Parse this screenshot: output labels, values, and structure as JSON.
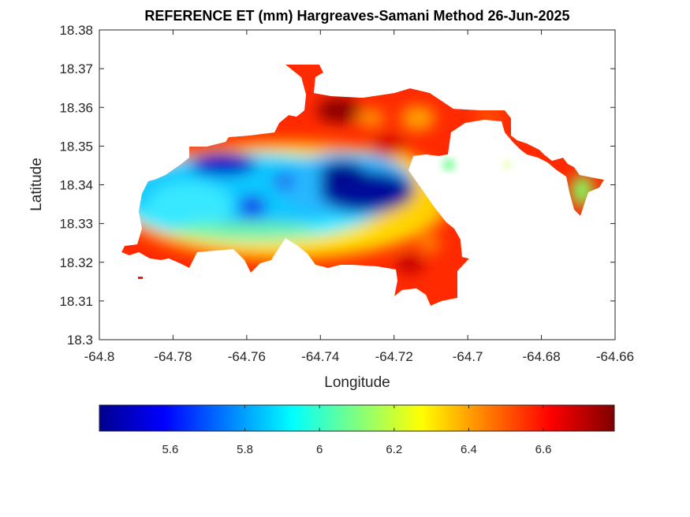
{
  "map": {
    "title": "REFERENCE ET (mm) Hargreaves-Samani Method  26-Jun-2025",
    "xlabel": "Longitude",
    "ylabel": "Latitude",
    "x_ticks": [
      "-64.8",
      "-64.78",
      "-64.76",
      "-64.74",
      "-64.72",
      "-64.7",
      "-64.68",
      "-64.66"
    ],
    "y_ticks": [
      "18.3",
      "18.31",
      "18.32",
      "18.33",
      "18.34",
      "18.35",
      "18.36",
      "18.37",
      "18.38"
    ],
    "xlim": [
      -64.8,
      -64.66
    ],
    "ylim": [
      18.3,
      18.38
    ],
    "colormap": "jet",
    "colorbar": {
      "orientation": "horizontal",
      "range": [
        5.41,
        6.79
      ],
      "tick_labels": [
        "5.6",
        "5.8",
        "6",
        "6.2",
        "6.4",
        "6.6"
      ]
    }
  }
}
